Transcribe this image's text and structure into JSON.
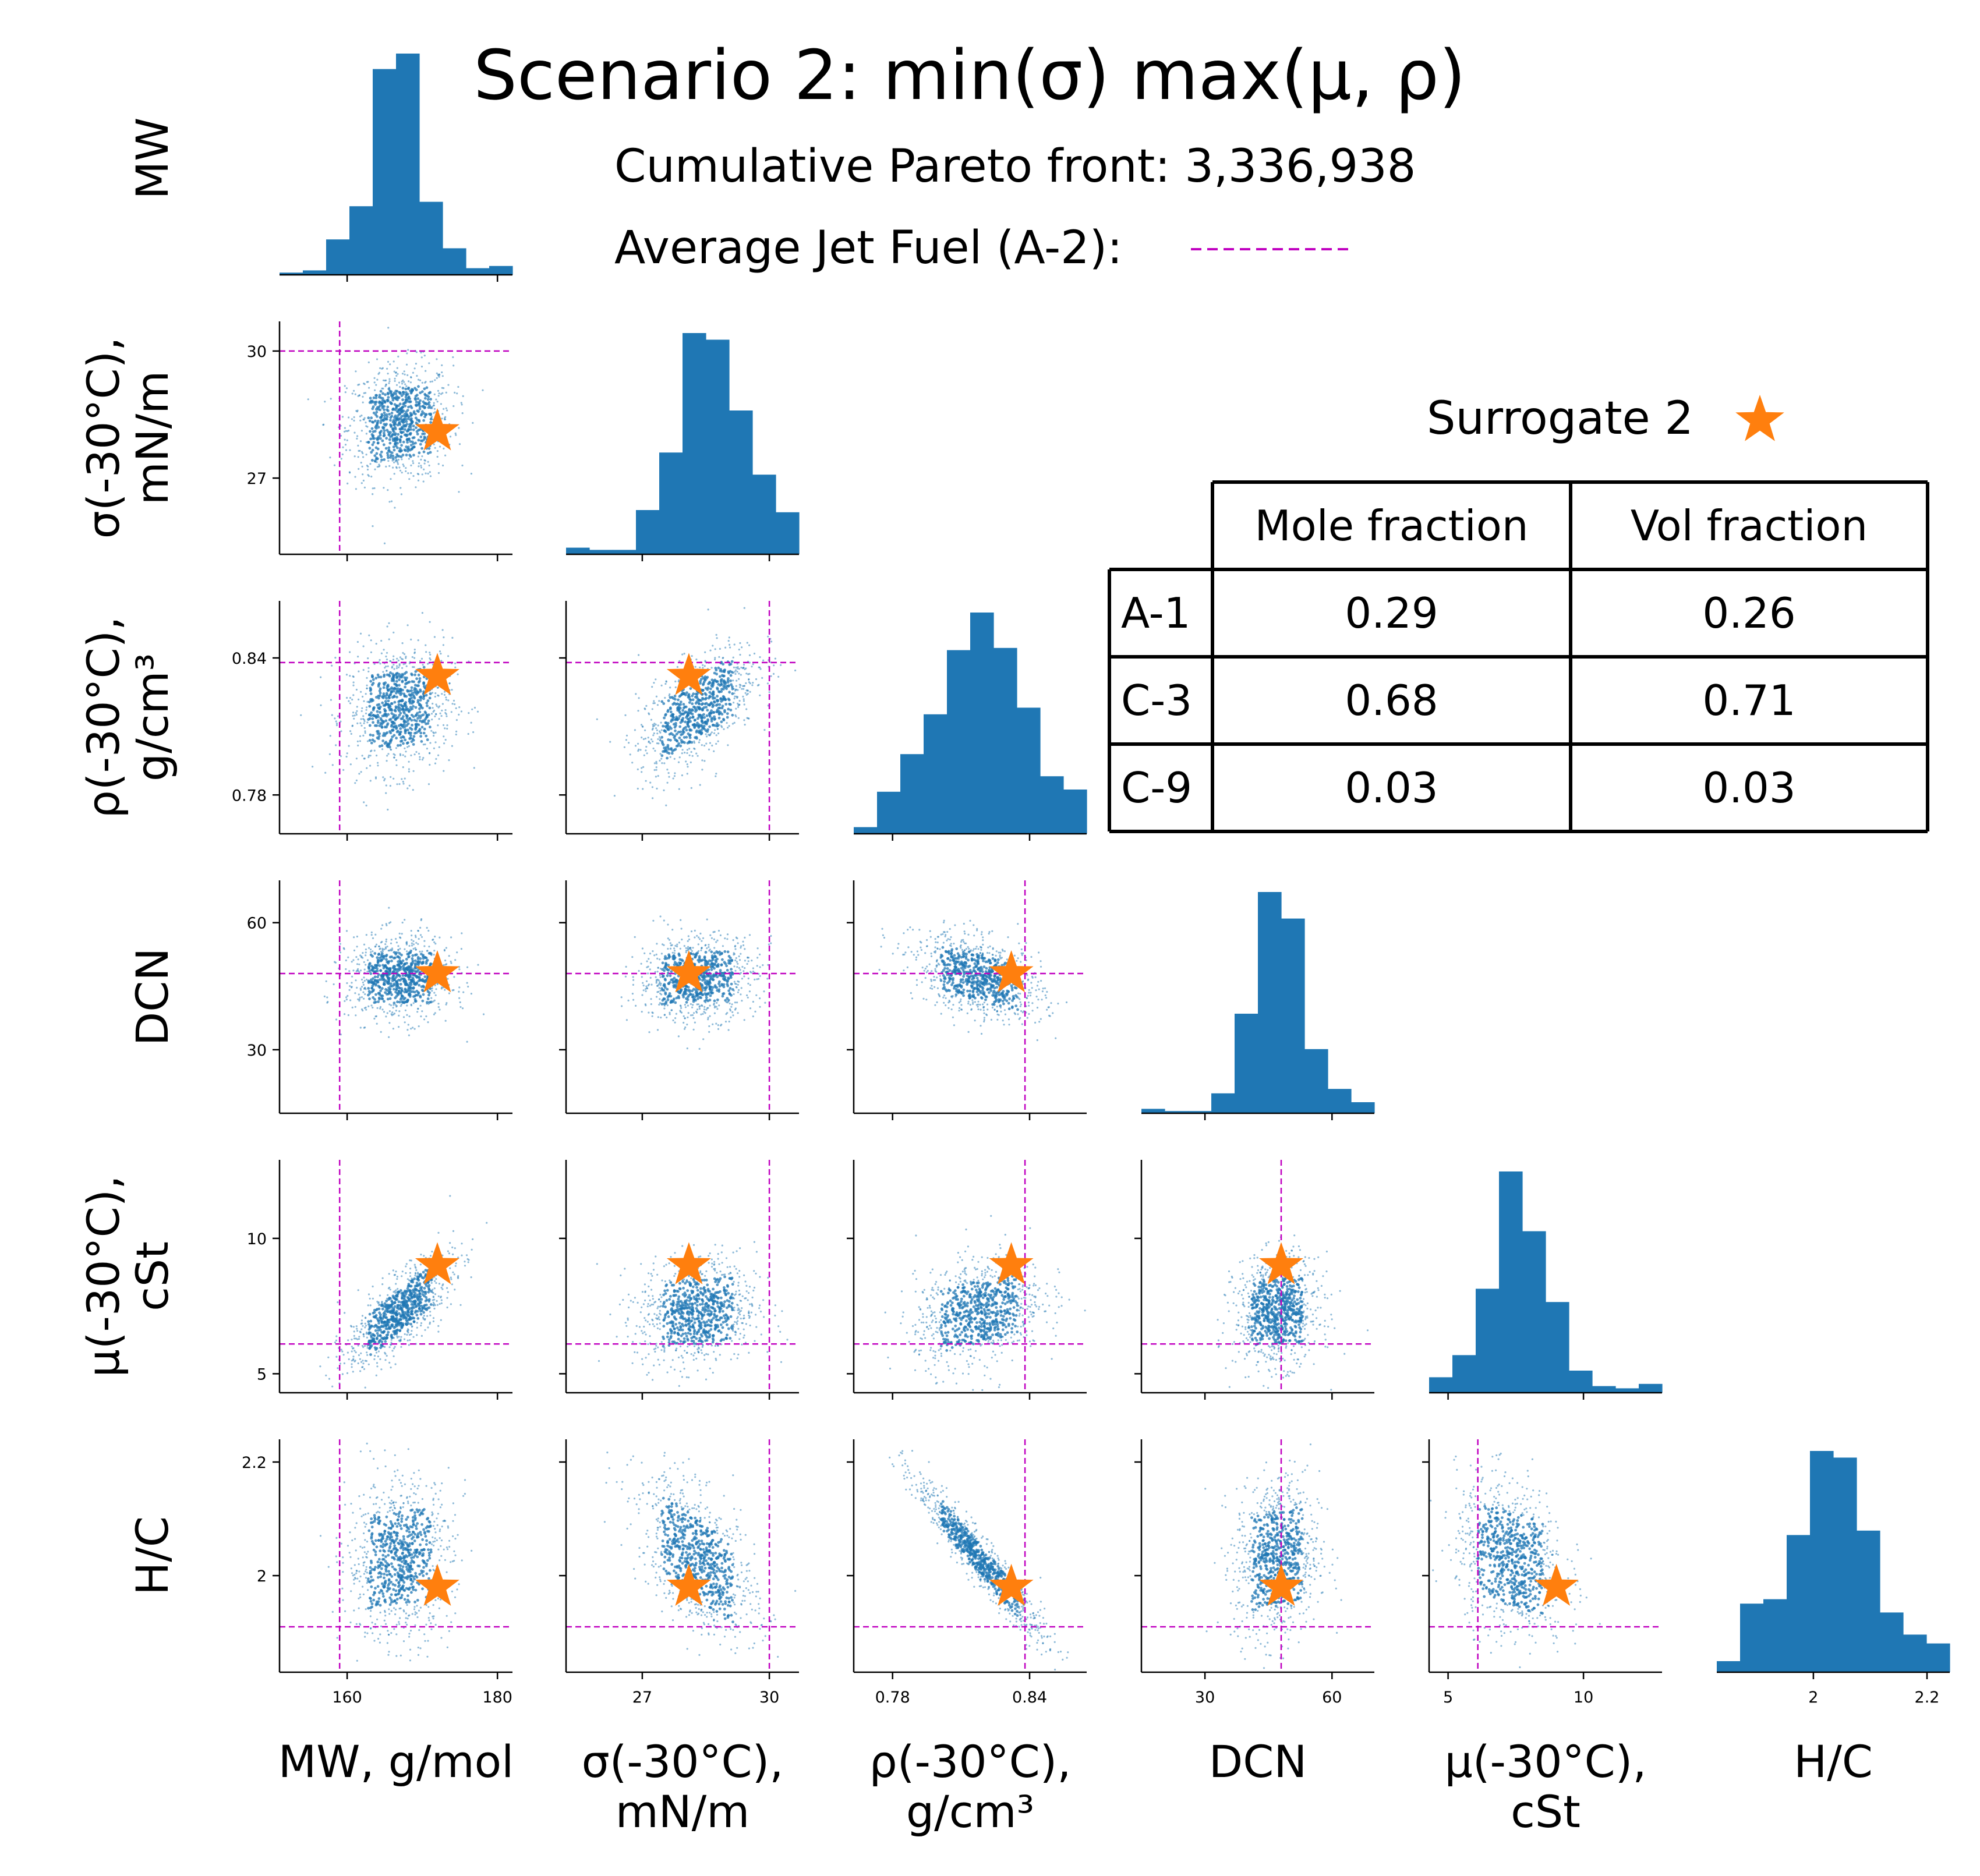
{
  "chart_data": {
    "type": "scatter",
    "title": "Scenario 2: min(σ) max(μ, ρ)",
    "annotations": {
      "pareto_label": "Cumulative Pareto front: 3,336,938",
      "reference_label": "Average Jet Fuel (A-2):",
      "surrogate_label": "Surrogate 2"
    },
    "colors": {
      "points": "#1f77b4",
      "histogram": "#1f77b4",
      "reference_line": "#c000c0",
      "surrogate_marker": "#ff7f0e"
    },
    "variables": [
      {
        "key": "MW",
        "row_label": [
          "MW"
        ],
        "col_label": [
          "MW, g/mol"
        ],
        "lim": [
          151,
          182
        ],
        "ticks": [
          160,
          180
        ],
        "ref": 159,
        "surrogate": 172,
        "mean": 167,
        "sd": 3.5
      },
      {
        "key": "sigma",
        "row_label": [
          "σ(-30°C),",
          "mN/m"
        ],
        "col_label": [
          "σ(-30°C),",
          "mN/m"
        ],
        "lim": [
          25.2,
          30.7
        ],
        "ticks": [
          27,
          30
        ],
        "ref": 30,
        "surrogate": 28.1,
        "mean": 28.3,
        "sd": 0.7
      },
      {
        "key": "rho",
        "row_label": [
          "ρ(-30°C),",
          "g/cm³"
        ],
        "col_label": [
          "ρ(-30°C),",
          "g/cm³"
        ],
        "lim": [
          0.763,
          0.865
        ],
        "ticks": [
          0.78,
          0.84
        ],
        "ref": 0.838,
        "surrogate": 0.832,
        "mean": 0.818,
        "sd": 0.014
      },
      {
        "key": "DCN",
        "row_label": [
          "DCN"
        ],
        "col_label": [
          "DCN"
        ],
        "lim": [
          15,
          70
        ],
        "ticks": [
          30,
          60
        ],
        "ref": 48,
        "surrogate": 48,
        "mean": 47,
        "sd": 5
      },
      {
        "key": "mu",
        "row_label": [
          "μ(-30°C),",
          "cSt"
        ],
        "col_label": [
          "μ(-30°C),",
          "cSt"
        ],
        "lim": [
          4.3,
          12.9
        ],
        "ticks": [
          5,
          10
        ],
        "ref": 6.1,
        "surrogate": 9.0,
        "mean": 7.3,
        "sd": 1.0
      },
      {
        "key": "HC",
        "row_label": [
          "H/C"
        ],
        "col_label": [
          "H/C"
        ],
        "lim": [
          1.83,
          2.24
        ],
        "ticks": [
          2.0,
          2.2
        ],
        "ref": 1.91,
        "surrogate": 1.98,
        "mean": 2.03,
        "sd": 0.07
      }
    ],
    "correlations": [
      [
        0,
        0.1,
        0.1,
        0,
        0.75,
        0.1
      ],
      [
        0.1,
        0,
        0.6,
        0.1,
        0.1,
        -0.55
      ],
      [
        0.1,
        0.6,
        0,
        -0.4,
        0.3,
        -0.95
      ],
      [
        0,
        0.1,
        -0.4,
        0,
        0.05,
        0.1
      ],
      [
        0.75,
        0.1,
        0.3,
        0.05,
        0,
        -0.2
      ],
      [
        0.1,
        -0.55,
        -0.95,
        0.1,
        -0.2,
        0
      ]
    ],
    "histograms": [
      {
        "bins": [
          151,
          182
        ],
        "counts": [
          1,
          2,
          16,
          31,
          93,
          100,
          33,
          12,
          3,
          4
        ]
      },
      {
        "bins": [
          25.2,
          30.7
        ],
        "counts": [
          3,
          2,
          2,
          20,
          46,
          100,
          97,
          65,
          36,
          19
        ]
      },
      {
        "bins": [
          0.763,
          0.865
        ],
        "counts": [
          3,
          19,
          36,
          54,
          83,
          100,
          84,
          57,
          26,
          20
        ]
      },
      {
        "bins": [
          15,
          70
        ],
        "counts": [
          2,
          1,
          1,
          9,
          45,
          100,
          88,
          29,
          11,
          5
        ]
      },
      {
        "bins": [
          4.3,
          12.9
        ],
        "counts": [
          7,
          17,
          47,
          100,
          73,
          41,
          10,
          3,
          2,
          4
        ]
      },
      {
        "bins": [
          1.83,
          2.24
        ],
        "counts": [
          5,
          31,
          33,
          62,
          100,
          97,
          64,
          27,
          17,
          13
        ]
      }
    ],
    "table": {
      "headers": [
        "",
        "Mole fraction",
        "Vol fraction"
      ],
      "rows": [
        {
          "component": "A-1",
          "mole": "0.29",
          "vol": "0.26"
        },
        {
          "component": "C-3",
          "mole": "0.68",
          "vol": "0.71"
        },
        {
          "component": "C-9",
          "mole": "0.03",
          "vol": "0.03"
        }
      ]
    }
  }
}
